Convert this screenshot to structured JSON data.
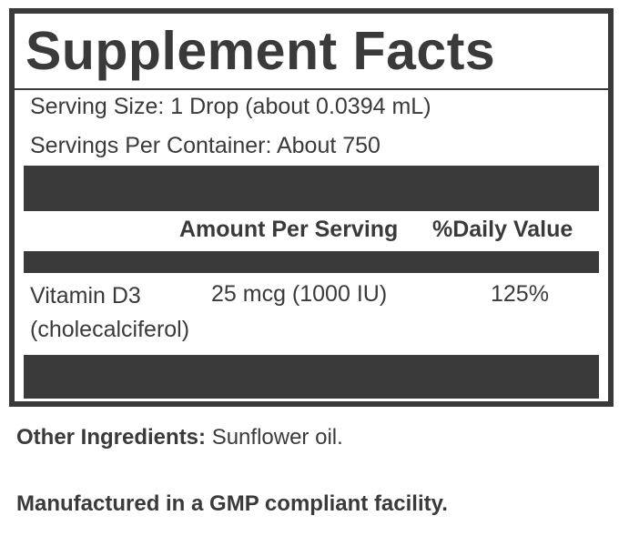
{
  "panel": {
    "title": "Supplement Facts",
    "serving_size": "Serving Size: 1 Drop (about 0.0394 mL)",
    "servings_per_container": "Servings Per Container: About 750",
    "columns": {
      "amount": "Amount Per Serving",
      "daily_value": "%Daily Value"
    },
    "rows": [
      {
        "name_line1": "Vitamin D3",
        "name_line2": "(cholecalciferol)",
        "amount": "25 mcg (1000 IU)",
        "daily_value": "125%"
      }
    ]
  },
  "footer": {
    "other_ingredients_label": "Other Ingredients:",
    "other_ingredients_value": " Sunflower oil.",
    "manufacturing_note": "Manufactured in a GMP compliant facility."
  },
  "colors": {
    "ink": "#3a3a3a",
    "background": "#ffffff"
  }
}
